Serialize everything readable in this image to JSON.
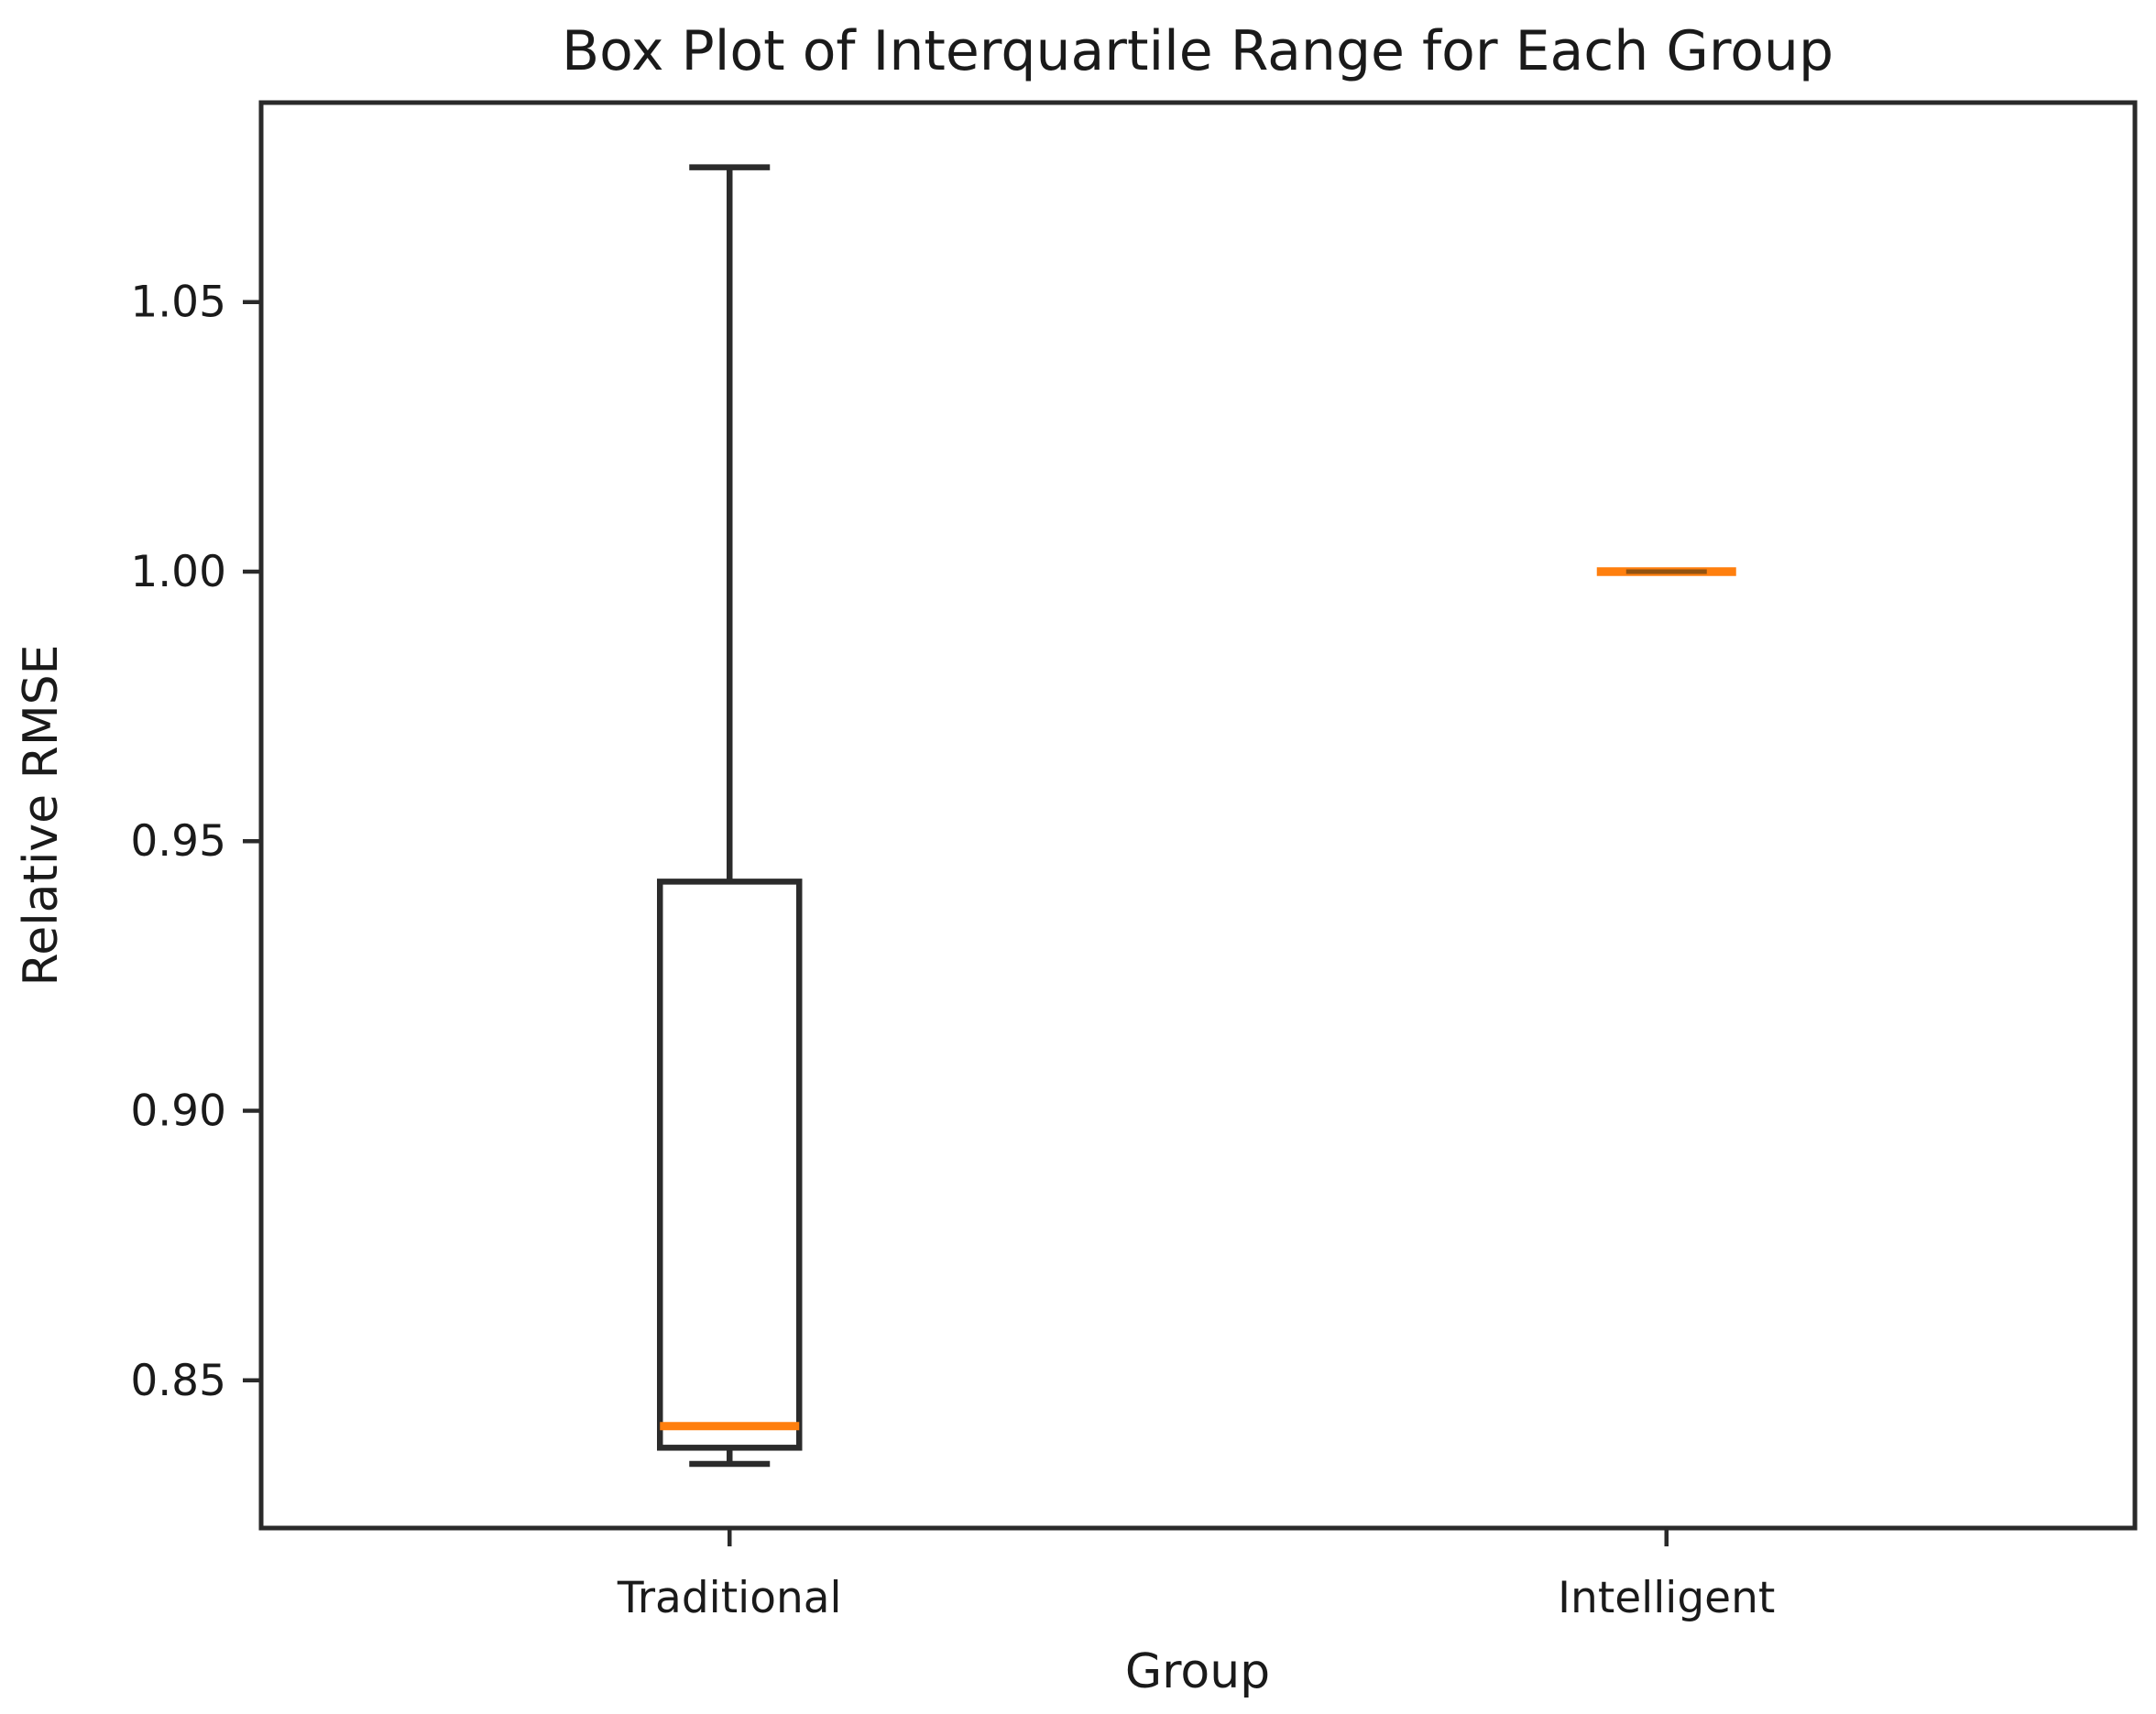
{
  "chart_data": {
    "type": "box",
    "title": "Box Plot of Interquartile Range for Each Group",
    "xlabel": "Group",
    "ylabel": "Relative RMSE",
    "categories": [
      "Traditional",
      "Intelligent"
    ],
    "positions": [
      1,
      2
    ],
    "xlim": [
      0.5,
      2.5
    ],
    "ylim": [
      0.8226,
      1.087
    ],
    "grid": false,
    "legend": "none",
    "y_ticks": [
      {
        "value": 0.85,
        "label": "0.85"
      },
      {
        "value": 0.9,
        "label": "0.90"
      },
      {
        "value": 0.95,
        "label": "0.95"
      },
      {
        "value": 1.0,
        "label": "1.00"
      },
      {
        "value": 1.05,
        "label": "1.05"
      }
    ],
    "series": [
      {
        "name": "Traditional",
        "whisker_low": 0.8345,
        "q1": 0.8375,
        "median": 0.8415,
        "q3": 0.9425,
        "whisker_high": 1.075
      },
      {
        "name": "Intelligent",
        "whisker_low": 1.0,
        "q1": 1.0,
        "median": 1.0,
        "q3": 1.0,
        "whisker_high": 1.0
      }
    ],
    "colors": {
      "median": "#ff7f0e",
      "box_line": "#2b2b2b",
      "axis": "#2a2a2a",
      "text": "#1a1a1a",
      "flat_core": "#6e4312"
    }
  }
}
